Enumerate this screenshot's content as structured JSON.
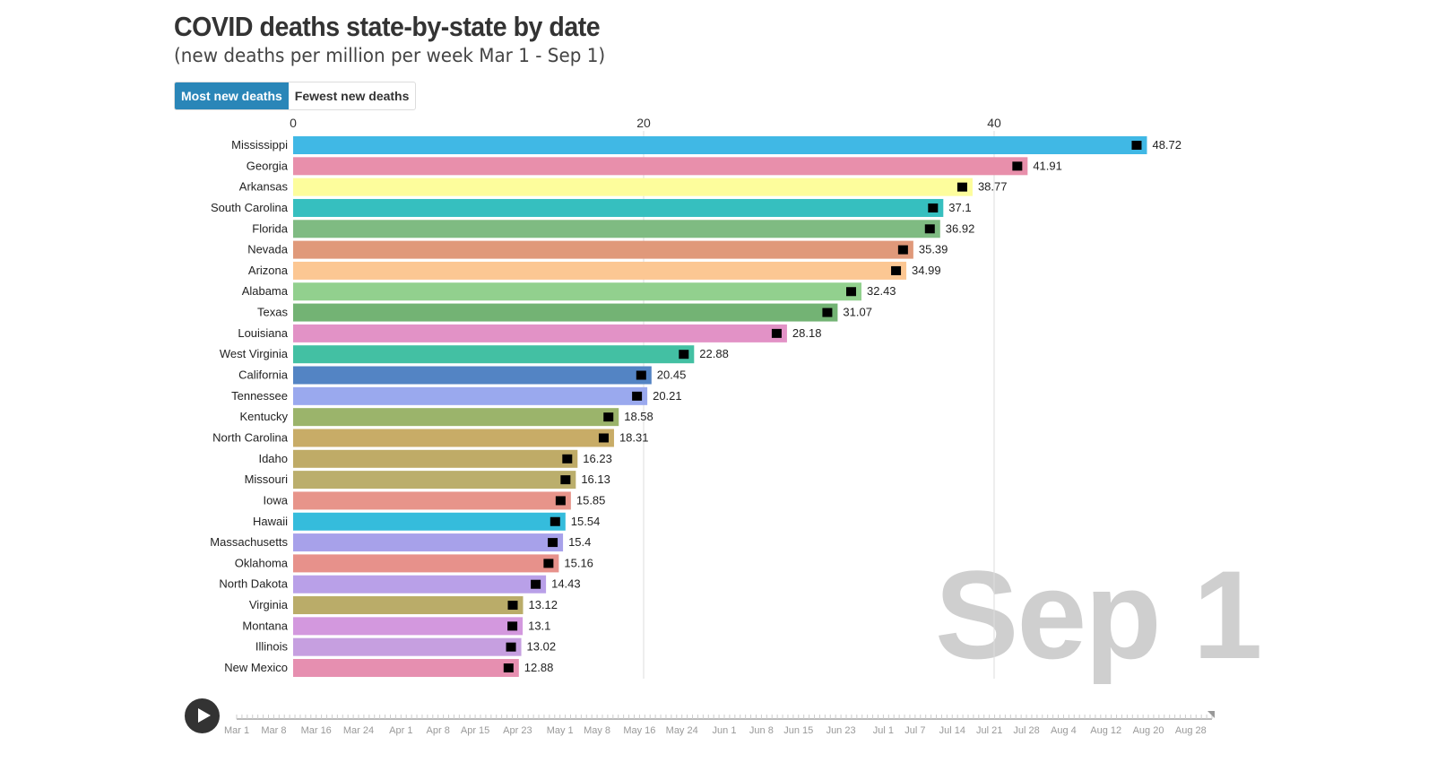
{
  "header": {
    "title": "COVID deaths state-by-state by date",
    "subtitle": "(new deaths per million per week Mar 1 - Sep 1)"
  },
  "toggle": {
    "most": "Most new deaths",
    "fewest": "Fewest new deaths",
    "selected": "most"
  },
  "current_date": "Sep 1",
  "timeline": {
    "labels": [
      "Mar 1",
      "Mar 8",
      "Mar 16",
      "Mar 24",
      "Apr 1",
      "Apr 8",
      "Apr 15",
      "Apr 23",
      "May 1",
      "May 8",
      "May 16",
      "May 24",
      "Jun 1",
      "Jun 8",
      "Jun 15",
      "Jun 23",
      "Jul 1",
      "Jul 7",
      "Jul 14",
      "Jul 21",
      "Jul 28",
      "Aug 4",
      "Aug 12",
      "Aug 20",
      "Aug 28"
    ],
    "progress": 1.0
  },
  "chart_data": {
    "type": "bar",
    "orientation": "horizontal",
    "title": "COVID deaths state-by-state by date",
    "xlim": [
      0,
      50
    ],
    "xticks": [
      0,
      20,
      40
    ],
    "grid": true,
    "categories": [
      "Mississippi",
      "Georgia",
      "Arkansas",
      "South Carolina",
      "Florida",
      "Nevada",
      "Arizona",
      "Alabama",
      "Texas",
      "Louisiana",
      "West Virginia",
      "California",
      "Tennessee",
      "Kentucky",
      "North Carolina",
      "Idaho",
      "Missouri",
      "Iowa",
      "Hawaii",
      "Massachusetts",
      "Oklahoma",
      "North Dakota",
      "Virginia",
      "Montana",
      "Illinois",
      "New Mexico"
    ],
    "values": [
      48.72,
      41.91,
      38.77,
      37.1,
      36.92,
      35.39,
      34.99,
      32.43,
      31.07,
      28.18,
      22.88,
      20.45,
      20.21,
      18.58,
      18.31,
      16.23,
      16.13,
      15.85,
      15.54,
      15.4,
      15.16,
      14.43,
      13.12,
      13.1,
      13.02,
      12.88
    ],
    "colors": [
      "#40b8e5",
      "#e88fab",
      "#fdfd9c",
      "#36bfbf",
      "#7fbb82",
      "#e0997a",
      "#fcc793",
      "#92d08e",
      "#73b374",
      "#e292c6",
      "#43c0a3",
      "#5384c4",
      "#9aa9ee",
      "#9bb46b",
      "#c8ac67",
      "#bfab67",
      "#bbae6c",
      "#e7948a",
      "#35bcdc",
      "#a7a1ea",
      "#e7918b",
      "#b9a0e8",
      "#baac69",
      "#d398de",
      "#c69fe0",
      "#e68fb0"
    ]
  }
}
